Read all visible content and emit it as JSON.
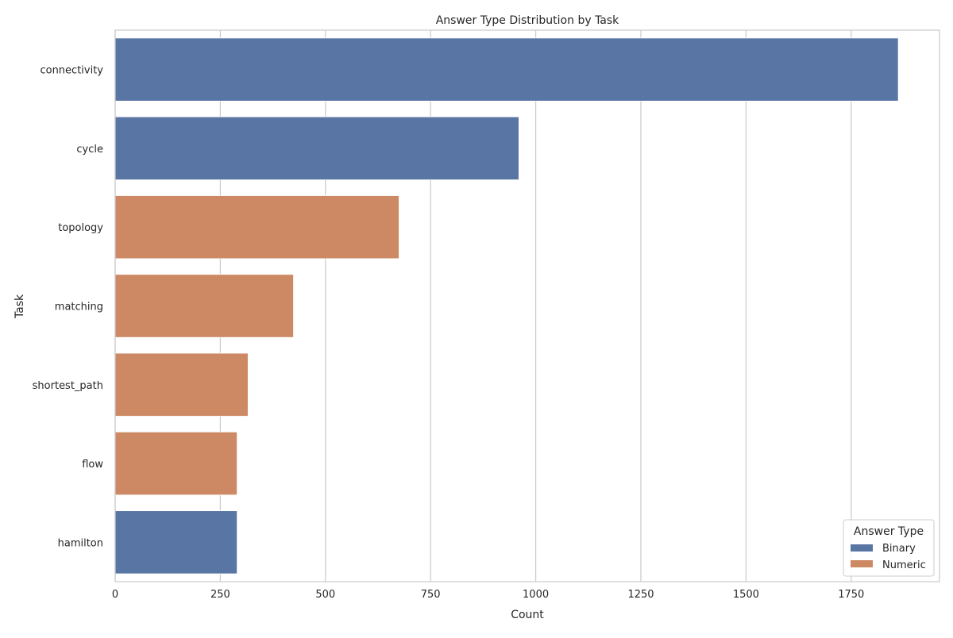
{
  "chart_data": {
    "type": "bar",
    "orientation": "horizontal",
    "title": "Answer Type Distribution by Task",
    "xlabel": "Count",
    "ylabel": "Task",
    "xlim": [
      0,
      1960
    ],
    "xticks": [
      0,
      250,
      500,
      750,
      1000,
      1250,
      1500,
      1750
    ],
    "xtick_labels": [
      "0",
      "250",
      "500",
      "750",
      "1000",
      "1250",
      "1500",
      "1750"
    ],
    "grid": "vertical",
    "categories": [
      "connectivity",
      "cycle",
      "topology",
      "matching",
      "shortest_path",
      "flow",
      "hamilton"
    ],
    "values": [
      1862,
      960,
      675,
      424,
      316,
      290,
      290
    ],
    "bar_types": [
      "Binary",
      "Binary",
      "Numeric",
      "Numeric",
      "Numeric",
      "Numeric",
      "Binary"
    ],
    "legend": {
      "title": "Answer Type",
      "placement": "lower-right",
      "entries": [
        {
          "label": "Binary",
          "color": "#5875a4"
        },
        {
          "label": "Numeric",
          "color": "#cc8963"
        }
      ]
    },
    "colors": {
      "Binary": "#5875a4",
      "Numeric": "#cc8963"
    }
  }
}
